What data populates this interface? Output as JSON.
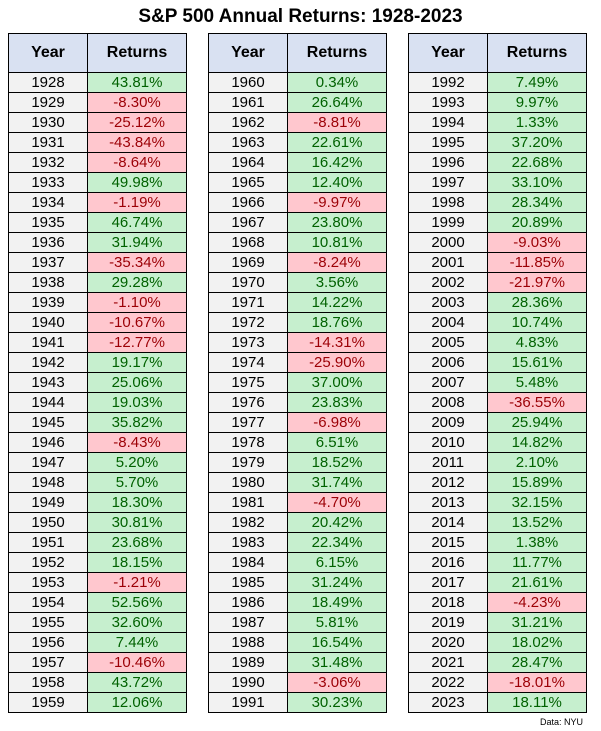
{
  "title": "S&P 500 Annual Returns: 1928-2023",
  "source": "Data: NYU",
  "colors": {
    "header_bg": "#d9e1f2",
    "year_bg": "#f2f2f2",
    "positive_bg": "#c6efce",
    "positive_text": "#006100",
    "negative_bg": "#ffc7ce",
    "negative_text": "#9c0006"
  },
  "chart_data": {
    "type": "table",
    "title": "S&P 500 Annual Returns: 1928-2023",
    "columns": [
      "Year",
      "Returns"
    ],
    "groups": [
      {
        "rows": [
          [
            "1928",
            "43.81%"
          ],
          [
            "1929",
            "-8.30%"
          ],
          [
            "1930",
            "-25.12%"
          ],
          [
            "1931",
            "-43.84%"
          ],
          [
            "1932",
            "-8.64%"
          ],
          [
            "1933",
            "49.98%"
          ],
          [
            "1934",
            "-1.19%"
          ],
          [
            "1935",
            "46.74%"
          ],
          [
            "1936",
            "31.94%"
          ],
          [
            "1937",
            "-35.34%"
          ],
          [
            "1938",
            "29.28%"
          ],
          [
            "1939",
            "-1.10%"
          ],
          [
            "1940",
            "-10.67%"
          ],
          [
            "1941",
            "-12.77%"
          ],
          [
            "1942",
            "19.17%"
          ],
          [
            "1943",
            "25.06%"
          ],
          [
            "1944",
            "19.03%"
          ],
          [
            "1945",
            "35.82%"
          ],
          [
            "1946",
            "-8.43%"
          ],
          [
            "1947",
            "5.20%"
          ],
          [
            "1948",
            "5.70%"
          ],
          [
            "1949",
            "18.30%"
          ],
          [
            "1950",
            "30.81%"
          ],
          [
            "1951",
            "23.68%"
          ],
          [
            "1952",
            "18.15%"
          ],
          [
            "1953",
            "-1.21%"
          ],
          [
            "1954",
            "52.56%"
          ],
          [
            "1955",
            "32.60%"
          ],
          [
            "1956",
            "7.44%"
          ],
          [
            "1957",
            "-10.46%"
          ],
          [
            "1958",
            "43.72%"
          ],
          [
            "1959",
            "12.06%"
          ]
        ]
      },
      {
        "rows": [
          [
            "1960",
            "0.34%"
          ],
          [
            "1961",
            "26.64%"
          ],
          [
            "1962",
            "-8.81%"
          ],
          [
            "1963",
            "22.61%"
          ],
          [
            "1964",
            "16.42%"
          ],
          [
            "1965",
            "12.40%"
          ],
          [
            "1966",
            "-9.97%"
          ],
          [
            "1967",
            "23.80%"
          ],
          [
            "1968",
            "10.81%"
          ],
          [
            "1969",
            "-8.24%"
          ],
          [
            "1970",
            "3.56%"
          ],
          [
            "1971",
            "14.22%"
          ],
          [
            "1972",
            "18.76%"
          ],
          [
            "1973",
            "-14.31%"
          ],
          [
            "1974",
            "-25.90%"
          ],
          [
            "1975",
            "37.00%"
          ],
          [
            "1976",
            "23.83%"
          ],
          [
            "1977",
            "-6.98%"
          ],
          [
            "1978",
            "6.51%"
          ],
          [
            "1979",
            "18.52%"
          ],
          [
            "1980",
            "31.74%"
          ],
          [
            "1981",
            "-4.70%"
          ],
          [
            "1982",
            "20.42%"
          ],
          [
            "1983",
            "22.34%"
          ],
          [
            "1984",
            "6.15%"
          ],
          [
            "1985",
            "31.24%"
          ],
          [
            "1986",
            "18.49%"
          ],
          [
            "1987",
            "5.81%"
          ],
          [
            "1988",
            "16.54%"
          ],
          [
            "1989",
            "31.48%"
          ],
          [
            "1990",
            "-3.06%"
          ],
          [
            "1991",
            "30.23%"
          ]
        ]
      },
      {
        "rows": [
          [
            "1992",
            "7.49%"
          ],
          [
            "1993",
            "9.97%"
          ],
          [
            "1994",
            "1.33%"
          ],
          [
            "1995",
            "37.20%"
          ],
          [
            "1996",
            "22.68%"
          ],
          [
            "1997",
            "33.10%"
          ],
          [
            "1998",
            "28.34%"
          ],
          [
            "1999",
            "20.89%"
          ],
          [
            "2000",
            "-9.03%"
          ],
          [
            "2001",
            "-11.85%"
          ],
          [
            "2002",
            "-21.97%"
          ],
          [
            "2003",
            "28.36%"
          ],
          [
            "2004",
            "10.74%"
          ],
          [
            "2005",
            "4.83%"
          ],
          [
            "2006",
            "15.61%"
          ],
          [
            "2007",
            "5.48%"
          ],
          [
            "2008",
            "-36.55%"
          ],
          [
            "2009",
            "25.94%"
          ],
          [
            "2010",
            "14.82%"
          ],
          [
            "2011",
            "2.10%"
          ],
          [
            "2012",
            "15.89%"
          ],
          [
            "2013",
            "32.15%"
          ],
          [
            "2014",
            "13.52%"
          ],
          [
            "2015",
            "1.38%"
          ],
          [
            "2016",
            "11.77%"
          ],
          [
            "2017",
            "21.61%"
          ],
          [
            "2018",
            "-4.23%"
          ],
          [
            "2019",
            "31.21%"
          ],
          [
            "2020",
            "18.02%"
          ],
          [
            "2021",
            "28.47%"
          ],
          [
            "2022",
            "-18.01%"
          ],
          [
            "2023",
            "18.11%"
          ]
        ]
      }
    ]
  }
}
